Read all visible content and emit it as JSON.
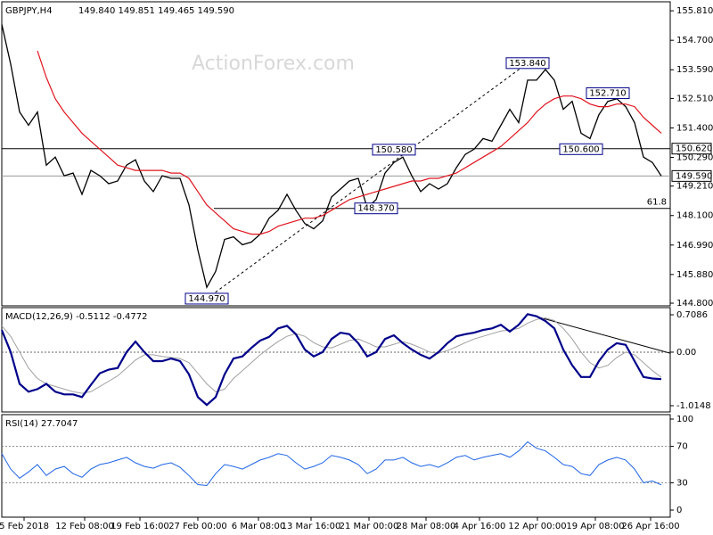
{
  "chart_data": [
    {
      "type": "price",
      "title": "GBPJPY,H4",
      "subtitle": "149.840 149.851 149.465 149.590",
      "watermark": "ActionForex.com",
      "color": "#000000",
      "ma_color": "#e0141e",
      "xlim": [
        0,
        75
      ],
      "xticks": [
        {
          "value": 2.5,
          "label": "5 Feb 2018"
        },
        {
          "value": 9.3,
          "label": "12 Feb 08:00"
        },
        {
          "value": 15.5,
          "label": "19 Feb 16:00"
        },
        {
          "value": 22,
          "label": "27 Feb 00:00"
        },
        {
          "value": 28.8,
          "label": "6 Mar 08:00"
        },
        {
          "value": 34.7,
          "label": "13 Mar 16:00"
        },
        {
          "value": 41.2,
          "label": "21 Mar 00:00"
        },
        {
          "value": 47.6,
          "label": "28 Mar 08:00"
        },
        {
          "value": 53.6,
          "label": "4 Apr 16:00"
        },
        {
          "value": 60.1,
          "label": "12 Apr 00:00"
        },
        {
          "value": 66.6,
          "label": "19 Apr 08:00"
        },
        {
          "value": 72.8,
          "label": "26 Apr 16:00"
        }
      ],
      "ylim": [
        144.7,
        156.15
      ],
      "yticks": [
        {
          "value": 155.81,
          "label": "155.810"
        },
        {
          "value": 154.7,
          "label": "154.700"
        },
        {
          "value": 153.59,
          "label": "153.590"
        },
        {
          "value": 152.51,
          "label": "152.510"
        },
        {
          "value": 151.4,
          "label": "151.400"
        },
        {
          "value": 150.29,
          "label": "150.290"
        },
        {
          "value": 149.21,
          "label": "149.210"
        },
        {
          "value": 148.1,
          "label": "148.100"
        },
        {
          "value": 146.99,
          "label": "146.990"
        },
        {
          "value": 145.88,
          "label": "145.880"
        },
        {
          "value": 144.8,
          "label": "144.800"
        }
      ],
      "x": [
        0,
        1,
        2,
        3,
        4,
        5,
        6,
        7,
        8,
        9,
        10,
        11,
        12,
        13,
        14,
        15,
        16,
        17,
        18,
        19,
        20,
        21,
        22,
        23,
        24,
        25,
        26,
        27,
        28,
        29,
        30,
        31,
        32,
        33,
        34,
        35,
        36,
        37,
        38,
        39,
        40,
        41,
        42,
        43,
        44,
        45,
        46,
        47,
        48,
        49,
        50,
        51,
        52,
        53,
        54,
        55,
        56,
        57,
        58,
        59,
        60,
        61,
        62,
        63,
        64,
        65,
        66,
        67,
        68,
        69,
        70,
        71,
        72,
        73,
        74
      ],
      "series": [
        {
          "values": [
            155.3,
            153.8,
            152.0,
            151.5,
            152.0,
            150.0,
            150.3,
            149.6,
            149.7,
            148.9,
            149.8,
            149.6,
            149.3,
            149.4,
            150.0,
            150.2,
            149.4,
            149.0,
            149.6,
            149.5,
            149.5,
            148.5,
            146.8,
            145.4,
            146.0,
            147.2,
            147.3,
            147.0,
            147.1,
            147.4,
            148.0,
            148.3,
            148.9,
            148.3,
            147.8,
            147.6,
            147.9,
            148.8,
            149.1,
            149.4,
            149.5,
            148.4,
            148.7,
            149.7,
            150.1,
            150.3,
            149.6,
            149.0,
            149.3,
            149.1,
            149.3,
            149.9,
            150.4,
            150.6,
            151.0,
            150.9,
            151.5,
            152.1,
            151.6,
            153.2,
            153.2,
            153.6,
            153.2,
            152.1,
            152.4,
            151.2,
            151.0,
            151.9,
            152.4,
            152.5,
            152.2,
            151.6,
            150.3,
            150.1,
            149.59
          ]
        },
        {
          "values": [
            null,
            null,
            null,
            null,
            154.3,
            153.3,
            152.5,
            152.0,
            151.6,
            151.2,
            150.9,
            150.6,
            150.3,
            150.0,
            149.9,
            149.8,
            149.8,
            149.8,
            149.8,
            149.7,
            149.7,
            149.5,
            149.0,
            148.5,
            148.2,
            147.9,
            147.6,
            147.5,
            147.4,
            147.4,
            147.5,
            147.7,
            147.8,
            147.9,
            148.0,
            148.0,
            148.1,
            148.3,
            148.5,
            148.7,
            148.8,
            148.9,
            149.0,
            149.1,
            149.2,
            149.3,
            149.4,
            149.4,
            149.5,
            149.5,
            149.6,
            149.7,
            149.9,
            150.1,
            150.3,
            150.5,
            150.7,
            151.0,
            151.3,
            151.6,
            152.0,
            152.3,
            152.5,
            152.6,
            152.6,
            152.5,
            152.3,
            152.2,
            152.2,
            152.3,
            152.3,
            152.2,
            151.8,
            151.5,
            151.2
          ]
        }
      ],
      "annotations": [
        {
          "x": 23,
          "value": 144.97,
          "label": "144.970"
        },
        {
          "x": 59,
          "value": 153.84,
          "label": "153.840"
        },
        {
          "x": 68,
          "value": 152.71,
          "label": "152.710"
        },
        {
          "x": 44,
          "value": 150.58,
          "label": "150.580"
        },
        {
          "x": 65,
          "value": 150.6,
          "label": "150.600"
        },
        {
          "x": 42,
          "value": 148.37,
          "label": "148.370"
        }
      ],
      "levels": [
        {
          "value": 150.62,
          "label": "150.620"
        },
        {
          "value": 149.59,
          "label": "149.590"
        }
      ],
      "fib": {
        "value": 148.37,
        "label": "61.8"
      }
    },
    {
      "type": "macd",
      "title": "MACD(12,26,9) -0.5112 -0.4772",
      "color": "#00008b",
      "signal_color": "#a0a0a0",
      "xlim": [
        0,
        75
      ],
      "ylim": [
        -1.133,
        0.844
      ],
      "yticks": [
        0.7086,
        {
          "value": 0,
          "label": "0.00"
        },
        -1.0148
      ],
      "x": [
        0,
        1,
        2,
        3,
        4,
        5,
        6,
        7,
        8,
        9,
        10,
        11,
        12,
        13,
        14,
        15,
        16,
        17,
        18,
        19,
        20,
        21,
        22,
        23,
        24,
        25,
        26,
        27,
        28,
        29,
        30,
        31,
        32,
        33,
        34,
        35,
        36,
        37,
        38,
        39,
        40,
        41,
        42,
        43,
        44,
        45,
        46,
        47,
        48,
        49,
        50,
        51,
        52,
        53,
        54,
        55,
        56,
        57,
        58,
        59,
        60,
        61,
        62,
        63,
        64,
        65,
        66,
        67,
        68,
        69,
        70,
        71,
        72,
        73,
        74
      ],
      "series": [
        {
          "values": [
            0.42,
            0,
            -0.6,
            -0.75,
            -0.7,
            -0.6,
            -0.75,
            -0.8,
            -0.8,
            -0.85,
            -0.62,
            -0.4,
            -0.33,
            -0.3,
            0,
            0.2,
            0,
            -0.17,
            -0.17,
            -0.12,
            -0.17,
            -0.42,
            -0.85,
            -1.0,
            -0.85,
            -0.42,
            -0.12,
            -0.08,
            0.08,
            0.22,
            0.29,
            0.45,
            0.5,
            0.34,
            0.05,
            -0.08,
            0,
            0.25,
            0.37,
            0.34,
            0.17,
            -0.08,
            0,
            0.25,
            0.32,
            0.17,
            0.05,
            -0.05,
            -0.12,
            0,
            0.17,
            0.3,
            0.34,
            0.37,
            0.42,
            0.45,
            0.52,
            0.39,
            0.52,
            0.72,
            0.68,
            0.59,
            0.45,
            0.05,
            -0.25,
            -0.47,
            -0.47,
            -0.17,
            0.05,
            0.17,
            0.14,
            -0.17,
            -0.47,
            -0.5,
            -0.5112
          ]
        },
        {
          "values": [
            0.5,
            0.3,
            0.0,
            -0.3,
            -0.5,
            -0.6,
            -0.65,
            -0.7,
            -0.75,
            -0.78,
            -0.75,
            -0.65,
            -0.55,
            -0.45,
            -0.3,
            -0.15,
            -0.05,
            -0.05,
            -0.08,
            -0.1,
            -0.12,
            -0.2,
            -0.4,
            -0.6,
            -0.75,
            -0.7,
            -0.5,
            -0.35,
            -0.2,
            -0.05,
            0.08,
            0.2,
            0.3,
            0.35,
            0.3,
            0.18,
            0.1,
            0.08,
            0.15,
            0.22,
            0.25,
            0.18,
            0.1,
            0.1,
            0.15,
            0.2,
            0.15,
            0.08,
            0.0,
            -0.02,
            0.03,
            0.1,
            0.18,
            0.25,
            0.3,
            0.35,
            0.4,
            0.42,
            0.45,
            0.55,
            0.62,
            0.65,
            0.6,
            0.45,
            0.25,
            0.0,
            -0.2,
            -0.3,
            -0.25,
            -0.1,
            0.0,
            -0.05,
            -0.2,
            -0.35,
            -0.4772
          ]
        }
      ],
      "trendline": {
        "x": [
          59,
          75
        ],
        "values": [
          0.72,
          -0.02
        ]
      }
    },
    {
      "type": "rsi",
      "title": "RSI(14) 27.7047",
      "color": "#1e64e6",
      "xlim": [
        0,
        75
      ],
      "ylim": [
        -7.8,
        104.9
      ],
      "yticks": [
        100,
        70,
        30,
        0
      ],
      "levels": [
        70,
        30
      ],
      "x": [
        0,
        1,
        2,
        3,
        4,
        5,
        6,
        7,
        8,
        9,
        10,
        11,
        12,
        13,
        14,
        15,
        16,
        17,
        18,
        19,
        20,
        21,
        22,
        23,
        24,
        25,
        26,
        27,
        28,
        29,
        30,
        31,
        32,
        33,
        34,
        35,
        36,
        37,
        38,
        39,
        40,
        41,
        42,
        43,
        44,
        45,
        46,
        47,
        48,
        49,
        50,
        51,
        52,
        53,
        54,
        55,
        56,
        57,
        58,
        59,
        60,
        61,
        62,
        63,
        64,
        65,
        66,
        67,
        68,
        69,
        70,
        71,
        72,
        73,
        74
      ],
      "values": [
        62,
        45,
        35,
        42,
        50,
        38,
        45,
        48,
        40,
        36,
        45,
        50,
        52,
        55,
        58,
        52,
        48,
        46,
        50,
        52,
        47,
        38,
        28,
        27,
        40,
        50,
        48,
        45,
        50,
        55,
        58,
        62,
        60,
        52,
        45,
        48,
        52,
        60,
        58,
        55,
        50,
        40,
        45,
        55,
        55,
        58,
        52,
        48,
        50,
        47,
        52,
        58,
        60,
        55,
        58,
        60,
        62,
        58,
        65,
        75,
        68,
        65,
        58,
        50,
        48,
        40,
        38,
        50,
        55,
        58,
        55,
        45,
        30,
        32,
        27.7047
      ]
    }
  ]
}
